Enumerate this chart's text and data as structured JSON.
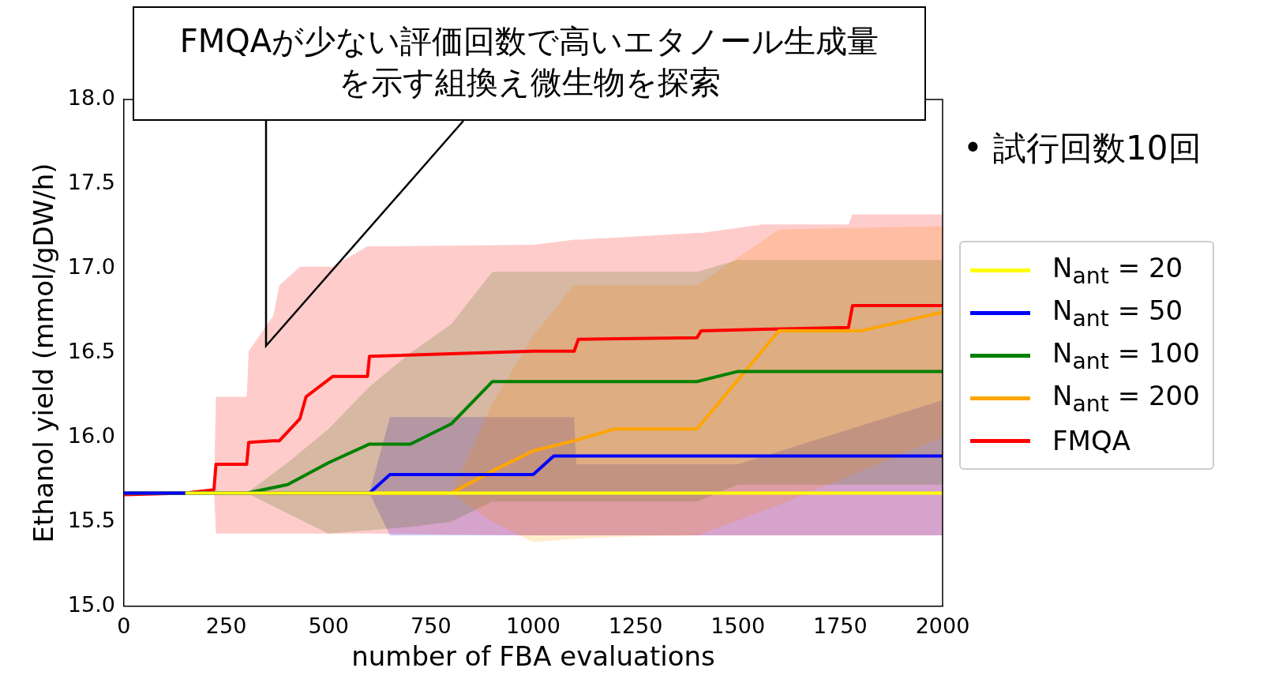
{
  "chart_data": {
    "type": "line",
    "xlabel": "number of FBA evaluations",
    "ylabel": "Ethanol yield (mmol/gDW/h)",
    "xlim": [
      0,
      2000
    ],
    "xticks": [
      0,
      250,
      500,
      750,
      1000,
      1250,
      1500,
      1750,
      2000
    ],
    "ylim": [
      15.0,
      18.0
    ],
    "yticks": [
      {
        "value": 15,
        "label": "15.0"
      },
      15.5,
      {
        "value": 16,
        "label": "16.0"
      },
      16.5,
      {
        "value": 17,
        "label": "17.0"
      },
      17.5,
      {
        "value": 18,
        "label": "18.0"
      }
    ],
    "legend": "right",
    "grid": false,
    "annotations": [
      "FMQAが少ない評価回数で高いエタノール生成量を示す組換え微生物を探索",
      "• 試行回数10回"
    ],
    "series": [
      {
        "name": "N$_{ant}$ = 20",
        "color": "#ffff00",
        "x": [
          150,
          2000
        ],
        "values": [
          15.67,
          15.67
        ]
      },
      {
        "name": "N$_{ant}$ = 50",
        "color": "#0000ff",
        "x": [
          0,
          600,
          650,
          1000,
          1050,
          1100,
          1105,
          1500,
          2000
        ],
        "values": [
          15.67,
          15.67,
          15.78,
          15.78,
          15.89,
          15.89,
          15.89,
          15.89,
          15.89
        ],
        "upper": [
          15.67,
          15.67,
          16.12,
          16.12,
          16.12,
          16.12,
          15.84,
          15.84,
          16.22
        ],
        "lower": [
          15.67,
          15.67,
          15.42,
          15.42,
          15.42,
          15.42,
          15.42,
          15.42,
          15.42
        ]
      },
      {
        "name": "N$_{ant}$ = 100",
        "color": "#008000",
        "x": [
          0,
          300,
          400,
          500,
          600,
          700,
          800,
          900,
          1400,
          1500,
          2000
        ],
        "values": [
          15.67,
          15.67,
          15.72,
          15.85,
          15.96,
          15.96,
          16.08,
          16.33,
          16.33,
          16.39,
          16.39
        ],
        "upper": [
          15.67,
          15.67,
          15.85,
          16.05,
          16.3,
          16.5,
          16.67,
          16.98,
          16.98,
          17.05,
          17.05
        ],
        "lower": [
          15.67,
          15.67,
          15.55,
          15.43,
          15.45,
          15.47,
          15.5,
          15.62,
          15.62,
          15.72,
          15.72
        ]
      },
      {
        "name": "N$_{ant}$ = 200",
        "color": "#ffa500",
        "x": [
          0,
          800,
          900,
          1000,
          1100,
          1200,
          1400,
          1600,
          1800,
          2000
        ],
        "values": [
          15.67,
          15.67,
          15.8,
          15.92,
          15.98,
          16.05,
          16.05,
          16.63,
          16.63,
          16.74
        ],
        "upper": [
          15.67,
          15.67,
          16.2,
          16.6,
          16.9,
          16.9,
          16.9,
          17.23,
          17.24,
          17.25
        ],
        "lower": [
          15.67,
          15.67,
          15.5,
          15.38,
          15.4,
          15.41,
          15.42,
          15.6,
          15.8,
          16.0
        ]
      },
      {
        "name": "FMQA",
        "color": "#ff0000",
        "x": [
          0,
          150,
          220,
          225,
          300,
          305,
          365,
          380,
          430,
          445,
          510,
          595,
          600,
          1000,
          1100,
          1110,
          1400,
          1410,
          1560,
          1770,
          1780,
          2000
        ],
        "values": [
          15.66,
          15.67,
          15.69,
          15.84,
          15.84,
          15.97,
          15.98,
          15.98,
          16.11,
          16.24,
          16.36,
          16.36,
          16.48,
          16.51,
          16.51,
          16.58,
          16.59,
          16.63,
          16.64,
          16.65,
          16.78,
          16.78
        ],
        "upper": [
          15.66,
          15.67,
          15.69,
          16.24,
          16.24,
          16.51,
          16.72,
          16.9,
          17.01,
          17.01,
          17.01,
          17.13,
          17.13,
          17.14,
          17.17,
          17.17,
          17.21,
          17.21,
          17.26,
          17.26,
          17.32,
          17.32
        ],
        "lower": [
          15.66,
          15.67,
          15.69,
          15.43,
          15.43,
          15.43,
          15.43,
          15.43,
          15.43,
          15.43,
          15.43,
          15.43,
          15.43,
          15.42,
          15.42,
          15.42,
          15.42,
          15.42,
          15.42,
          15.42,
          15.42,
          15.42
        ]
      }
    ]
  }
}
